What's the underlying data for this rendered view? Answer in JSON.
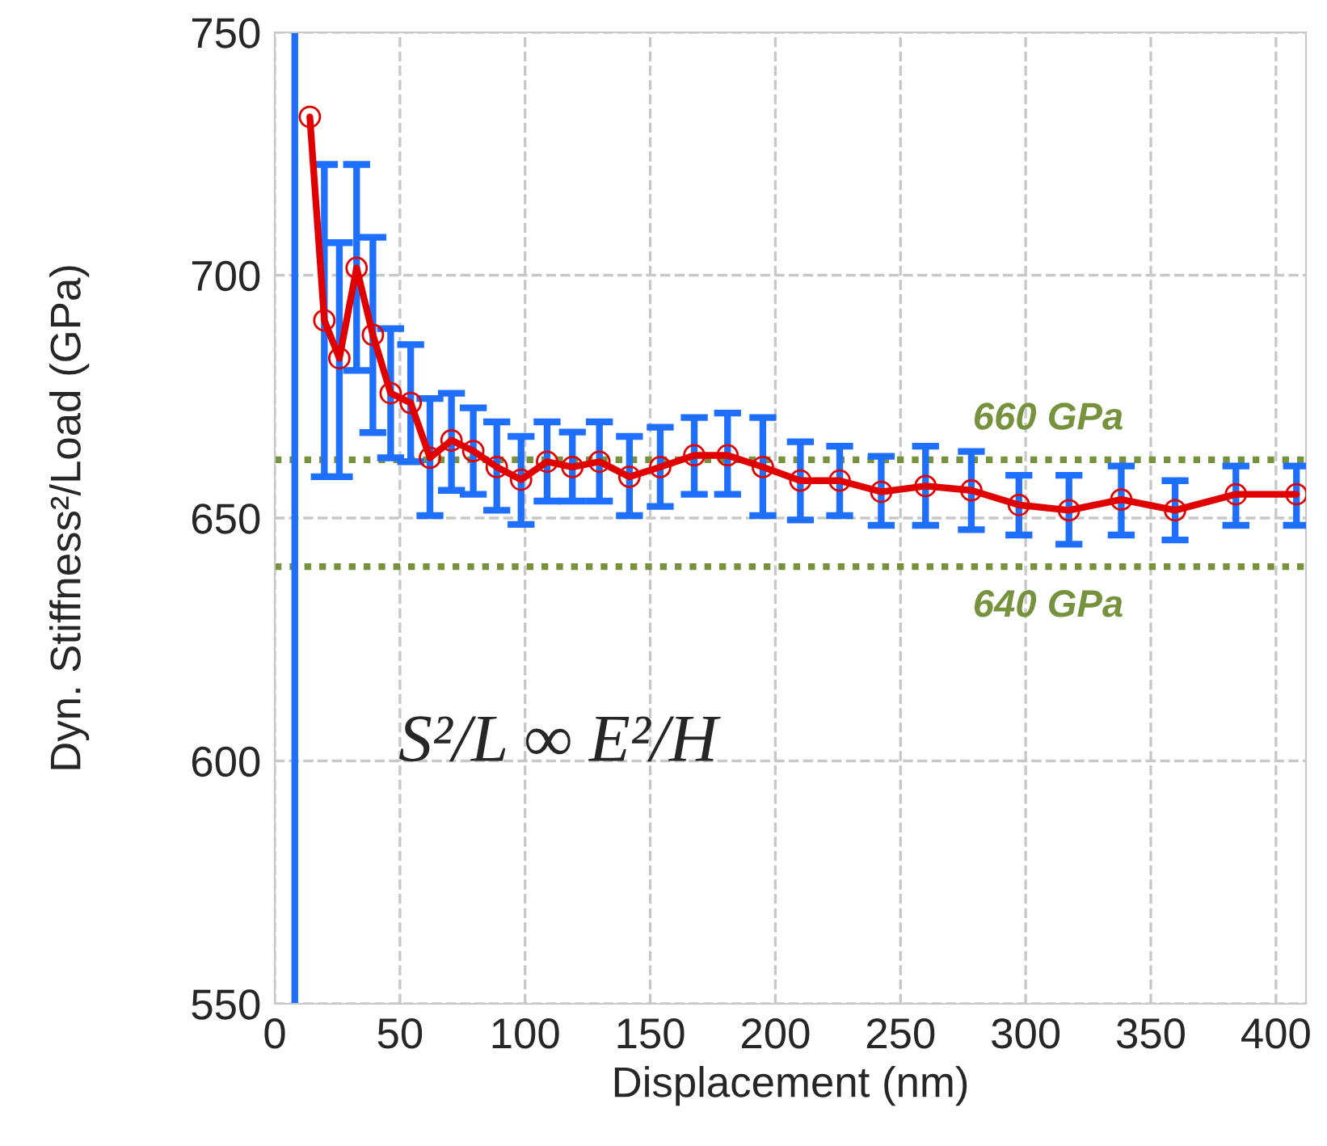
{
  "chart_data": {
    "type": "line",
    "xlabel": "Displacement (nm)",
    "ylabel": "Dyn. Stiffness²/Load (GPa)",
    "xlim": [
      0,
      412
    ],
    "ylim": [
      550,
      750
    ],
    "xticks": [
      0,
      50,
      100,
      150,
      200,
      250,
      300,
      350,
      400
    ],
    "yticks": [
      550,
      600,
      650,
      700,
      750
    ],
    "grid": true,
    "marker": "circle",
    "line_style": "solid",
    "series": [
      {
        "color": "#e00000",
        "x": [
          14,
          19.8,
          25.8,
          32.7,
          39.2,
          46.3,
          54.3,
          62,
          70.6,
          79.3,
          88.7,
          98.4,
          108.8,
          118.9,
          129.7,
          141.7,
          154,
          167.6,
          180.9,
          195,
          210,
          225.7,
          242.3,
          260,
          278.3,
          297.3,
          317.3,
          338.2,
          359.7,
          384,
          408.2
        ],
        "values": [
          732.6,
          690.7,
          682.9,
          701.5,
          687.7,
          675.7,
          673.7,
          662.4,
          666,
          663.8,
          660.5,
          657.9,
          661.6,
          660.5,
          661.6,
          658.5,
          660.5,
          662.9,
          662.9,
          660.5,
          657.7,
          657.7,
          655.4,
          656.6,
          655.7,
          652.7,
          651.6,
          653.8,
          651.6,
          654.9,
          654.9
        ],
        "errors": [
          null,
          [
            658.5,
            722.8
          ],
          [
            658.5,
            706.7
          ],
          [
            680.4,
            722.8
          ],
          [
            667.6,
            707.8
          ],
          [
            662.4,
            689
          ],
          [
            661.6,
            685.7
          ],
          [
            650.5,
            674.6
          ],
          [
            655.7,
            675.7
          ],
          [
            654.9,
            672.7
          ],
          [
            651.6,
            669.8
          ],
          [
            648.7,
            666.8
          ],
          [
            653.5,
            669.8
          ],
          [
            653.5,
            667.7
          ],
          [
            653.5,
            669.8
          ],
          [
            650.5,
            666.8
          ],
          [
            652.4,
            668.7
          ],
          [
            654.9,
            670.7
          ],
          [
            654.9,
            671.6
          ],
          [
            650.5,
            670.7
          ],
          [
            649.6,
            665.7
          ],
          [
            650.5,
            664.8
          ],
          [
            648.5,
            662.7
          ],
          [
            648.5,
            664.8
          ],
          [
            647.6,
            663.7
          ],
          [
            646.5,
            658.8
          ],
          [
            644.6,
            658.8
          ],
          [
            646.5,
            660.7
          ],
          [
            645.5,
            657.7
          ],
          [
            648.5,
            660.7
          ],
          [
            648.5,
            660.7
          ]
        ]
      }
    ],
    "ref_lines": [
      {
        "axis": "y",
        "value": 662,
        "label": "660 GPa",
        "color": "#76923c",
        "line_style": "dotted"
      },
      {
        "axis": "y",
        "value": 640,
        "label": "640 GPa",
        "color": "#76923c",
        "line_style": "dotted"
      },
      {
        "axis": "x",
        "value": 8,
        "color": "#1f6fff",
        "line_style": "solid"
      }
    ],
    "annotations": [
      "S²/L ∞ E²/H"
    ]
  }
}
